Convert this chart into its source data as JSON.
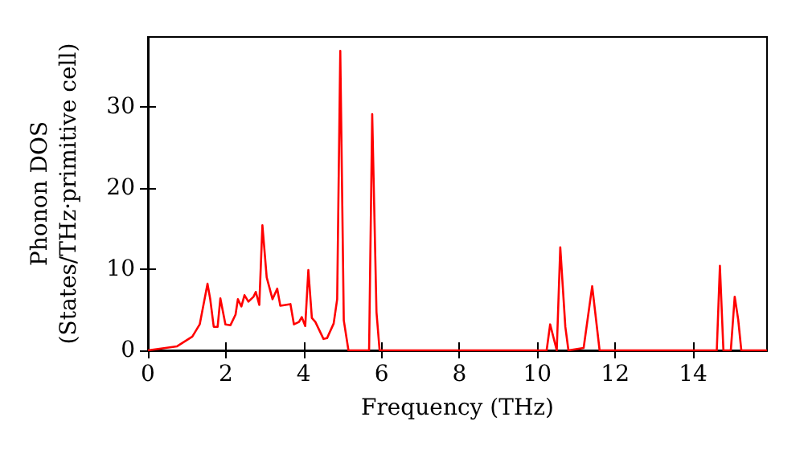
{
  "chart_data": {
    "type": "line",
    "xlabel": "Frequency (THz)",
    "ylabel": "Phonon DOS\n(States/THz·primitive cell)",
    "xlim": [
      0,
      15.9
    ],
    "ylim": [
      0,
      38.6
    ],
    "xticks": [
      0,
      2,
      4,
      6,
      8,
      10,
      12,
      14
    ],
    "yticks": [
      0,
      10,
      20,
      30
    ],
    "grid": false,
    "marker": "none",
    "line_style": "solid",
    "series": [
      {
        "color": "#ff0000",
        "x": [
          0,
          0.75,
          1.14,
          1.33,
          1.53,
          1.6,
          1.69,
          1.79,
          1.86,
          1.99,
          2.12,
          2.25,
          2.31,
          2.4,
          2.48,
          2.58,
          2.71,
          2.77,
          2.86,
          2.94,
          3.05,
          3.2,
          3.32,
          3.4,
          3.66,
          3.75,
          3.88,
          3.95,
          4.04,
          4.12,
          4.21,
          4.3,
          4.51,
          4.6,
          4.77,
          4.86,
          4.94,
          5.03,
          5.15,
          5.68,
          5.76,
          5.87,
          5.95,
          10.24,
          10.33,
          10.5,
          10.59,
          10.72,
          10.8,
          11.19,
          11.41,
          11.6,
          14.61,
          14.69,
          14.78,
          14.97,
          15.07,
          15.16,
          15.24,
          15.9
        ],
        "values": [
          0,
          0.5,
          1.7,
          3.2,
          8.2,
          6.3,
          2.9,
          2.9,
          6.4,
          3.2,
          3.1,
          4.4,
          6.3,
          5.4,
          6.8,
          6.0,
          6.6,
          7.2,
          5.6,
          15.4,
          9.0,
          6.3,
          7.6,
          5.5,
          5.7,
          3.2,
          3.5,
          4.1,
          3.0,
          9.9,
          4.0,
          3.5,
          1.4,
          1.5,
          3.3,
          6.3,
          36.9,
          3.7,
          0,
          0,
          29.1,
          4.7,
          0,
          0,
          3.2,
          0,
          12.7,
          2.9,
          0,
          0.3,
          7.9,
          0,
          0,
          10.4,
          0,
          0,
          6.6,
          3.8,
          0,
          0
        ]
      }
    ]
  }
}
